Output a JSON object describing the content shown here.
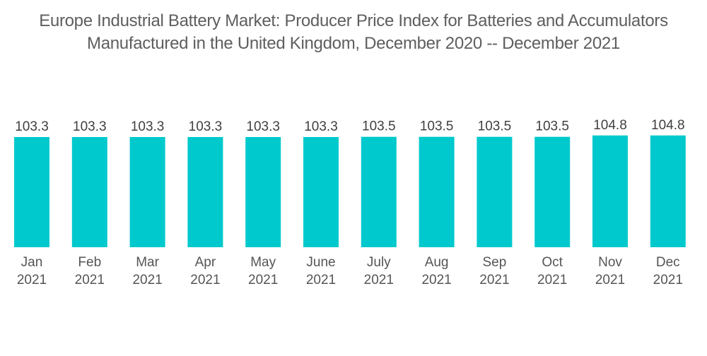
{
  "chart_data": {
    "type": "bar",
    "title_line1": "Europe Industrial Battery Market: Producer Price Index for Batteries and Accumulators",
    "title_line2": "Manufactured in the United Kingdom, December 2020 -- December 2021",
    "categories": [
      [
        "Jan",
        "2021"
      ],
      [
        "Feb",
        "2021"
      ],
      [
        "Mar",
        "2021"
      ],
      [
        "Apr",
        "2021"
      ],
      [
        "May",
        "2021"
      ],
      [
        "June",
        "2021"
      ],
      [
        "July",
        "2021"
      ],
      [
        "Aug",
        "2021"
      ],
      [
        "Sep",
        "2021"
      ],
      [
        "Oct",
        "2021"
      ],
      [
        "Nov",
        "2021"
      ],
      [
        "Dec",
        "2021"
      ]
    ],
    "values": [
      103.3,
      103.3,
      103.3,
      103.3,
      103.3,
      103.3,
      103.5,
      103.5,
      103.5,
      103.5,
      104.8,
      104.8
    ],
    "value_labels": [
      "103.3",
      "103.3",
      "103.3",
      "103.3",
      "103.3",
      "103.3",
      "103.5",
      "103.5",
      "103.5",
      "103.5",
      "104.8",
      "104.8"
    ],
    "xlabel": "",
    "ylabel": "",
    "ylim": [
      0,
      105
    ],
    "grid": false,
    "legend": "none",
    "bar_color": "#00c9cd"
  }
}
